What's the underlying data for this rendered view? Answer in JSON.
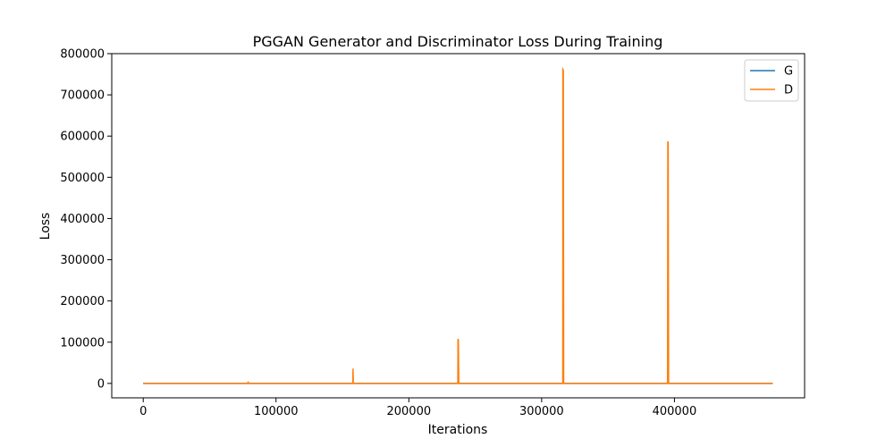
{
  "chart_data": {
    "type": "line",
    "title": "PGGAN Generator and Discriminator Loss During Training",
    "xlabel": "Iterations",
    "ylabel": "Loss",
    "xlim": [
      -23700,
      498000
    ],
    "ylim": [
      -35000,
      800000
    ],
    "xticks": [
      0,
      100000,
      200000,
      300000,
      400000
    ],
    "xtick_labels": [
      "0",
      "100000",
      "200000",
      "300000",
      "400000"
    ],
    "yticks": [
      0,
      100000,
      200000,
      300000,
      400000,
      500000,
      600000,
      700000,
      800000
    ],
    "ytick_labels": [
      "0",
      "100000",
      "200000",
      "300000",
      "400000",
      "500000",
      "600000",
      "700000",
      "800000"
    ],
    "grid": false,
    "legend_position": "top-right",
    "series": [
      {
        "name": "G",
        "color": "#1f77b4",
        "x": [
          0,
          79000,
          158000,
          237000,
          316000,
          395000,
          474000
        ],
        "y": [
          0,
          0,
          0,
          0,
          0,
          0,
          0
        ]
      },
      {
        "name": "D",
        "color": "#ff7f0e",
        "x": [
          0,
          78900,
          79000,
          79100,
          157800,
          158000,
          158200,
          236900,
          237000,
          237300,
          237600,
          315900,
          316000,
          316300,
          316600,
          394800,
          395000,
          395300,
          395600,
          474000
        ],
        "y": [
          0,
          0,
          5000,
          0,
          0,
          36000,
          0,
          0,
          108000,
          105000,
          0,
          0,
          762000,
          760000,
          0,
          0,
          587000,
          584000,
          0,
          0
        ]
      }
    ]
  }
}
